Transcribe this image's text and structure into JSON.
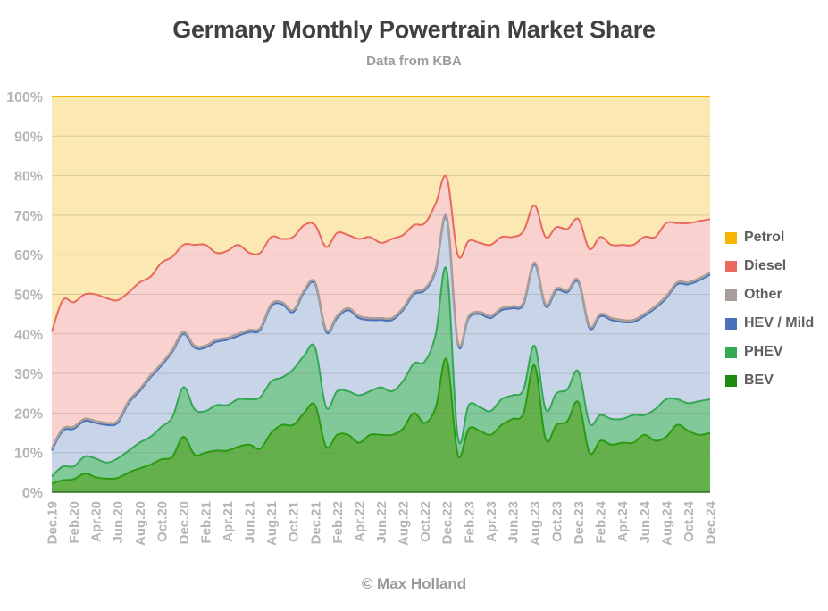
{
  "chart_data": {
    "type": "area",
    "stacked": true,
    "title": "Germany Monthly Powertrain Market Share",
    "subtitle": "Data from KBA",
    "credit": "© Max Holland",
    "xlabel": "",
    "ylabel": "",
    "ylim": [
      0,
      100
    ],
    "y_ticks": [
      "0%",
      "10%",
      "20%",
      "30%",
      "40%",
      "50%",
      "60%",
      "70%",
      "80%",
      "90%",
      "100%"
    ],
    "x_tick_labels": [
      "Dec.19",
      "Feb.20",
      "Apr.20",
      "Jun.20",
      "Aug.20",
      "Oct.20",
      "Dec.20",
      "Feb.21",
      "Apr.21",
      "Jun.21",
      "Aug.21",
      "Oct.21",
      "Dec.21",
      "Feb.22",
      "Apr.22",
      "Jun.22",
      "Aug.22",
      "Oct.22",
      "Dec.22",
      "Feb.23",
      "Apr.23",
      "Jun.23",
      "Aug.23",
      "Oct.23",
      "Dec.23",
      "Feb.24",
      "Apr.24",
      "Jun.24",
      "Aug.24",
      "Oct.24",
      "Dec.24"
    ],
    "months_count": 61,
    "grid": true,
    "legend_position": "right",
    "series": [
      {
        "name": "BEV",
        "color": "#2a9a12",
        "fill": "#64b04b",
        "values": [
          2.2,
          3,
          3.3,
          4.7,
          3.8,
          3.4,
          3.6,
          5,
          6,
          7,
          8.3,
          9,
          14,
          9.5,
          10,
          10.5,
          10.5,
          11.5,
          12,
          11,
          15,
          17,
          17,
          20,
          22,
          11.5,
          14.5,
          14.5,
          12.5,
          14.5,
          14.5,
          14.5,
          16,
          20,
          17.5,
          21.5,
          33.5,
          9.5,
          16,
          15.5,
          14.5,
          17,
          18.5,
          20,
          32,
          13.5,
          17,
          18,
          22.7,
          10,
          13,
          12,
          12.5,
          12.5,
          14.5,
          13,
          14,
          17,
          15.5,
          14.5,
          15
        ]
      },
      {
        "name": "PHEV",
        "color": "#34a853",
        "fill": "#82c99a",
        "values": [
          1.8,
          3.5,
          3.2,
          4.3,
          4.7,
          4.1,
          4.9,
          5.5,
          6.5,
          7,
          8.2,
          10,
          12.5,
          11.5,
          10.5,
          11.5,
          11.5,
          12,
          11.5,
          13,
          13,
          12,
          14,
          14.5,
          14.5,
          10,
          11,
          11,
          12,
          11,
          12,
          11,
          12,
          12.5,
          15.5,
          18.5,
          22.5,
          4.5,
          6,
          6,
          6,
          6.5,
          6,
          6,
          5,
          7.5,
          8,
          8,
          7.8,
          7.5,
          6.5,
          6.5,
          6,
          7,
          5,
          8,
          9.5,
          6.5,
          7,
          8.5,
          8.5
        ]
      },
      {
        "name": "HEV / Mild",
        "color": "#4a72b8",
        "fill": "#c8d4e8",
        "values": [
          6.5,
          9,
          9.5,
          9,
          9,
          9.5,
          9,
          12,
          13,
          15,
          15.5,
          16.5,
          13.5,
          15.5,
          16,
          16,
          16.5,
          16,
          17,
          17,
          19,
          18.5,
          14.5,
          16,
          16,
          19,
          18.5,
          20.5,
          19.5,
          18,
          17,
          18,
          18,
          17.5,
          18,
          16,
          13,
          23.5,
          22,
          23.5,
          23.5,
          22.5,
          22,
          21.5,
          20.5,
          26,
          26,
          24.5,
          22.5,
          24,
          25,
          25,
          24.5,
          23.5,
          25,
          25.5,
          25.5,
          29,
          30,
          30.5,
          31.5
        ]
      },
      {
        "name": "Other",
        "color": "#a89e99",
        "fill": "#d9cfca",
        "values": [
          0.5,
          0.5,
          0.5,
          0.5,
          0.5,
          0.5,
          0.5,
          0.5,
          0.5,
          0.5,
          0.5,
          0.5,
          0.5,
          0.5,
          0.5,
          0.5,
          0.5,
          0.5,
          0.5,
          0.5,
          0.5,
          0.5,
          0.5,
          0.5,
          0.5,
          0.5,
          0.5,
          0.5,
          0.5,
          0.5,
          0.5,
          0.5,
          0.5,
          0.5,
          0.5,
          0.5,
          0.5,
          0.5,
          0.5,
          0.5,
          0.5,
          0.5,
          0.5,
          0.5,
          0.5,
          0.5,
          0.5,
          0.5,
          0.5,
          0.5,
          0.5,
          0.5,
          0.5,
          0.5,
          0.5,
          0.5,
          0.5,
          0.5,
          0.5,
          0.5,
          0.5
        ]
      },
      {
        "name": "Diesel",
        "color": "#e8695e",
        "fill": "#f9d2cf",
        "values": [
          29.5,
          32.5,
          31.5,
          31.5,
          32,
          31.5,
          30.5,
          27.5,
          27,
          25,
          25.5,
          23.5,
          22,
          25.5,
          25.5,
          22,
          22,
          22.5,
          19.5,
          19,
          17,
          16,
          18.5,
          16.5,
          14.5,
          21,
          21,
          18.5,
          19.5,
          20.5,
          19,
          20,
          18.5,
          17,
          16.5,
          16.5,
          10,
          22,
          19,
          17.5,
          18,
          18,
          17.5,
          18,
          14.5,
          17,
          15.5,
          15.5,
          15.5,
          19.5,
          19.5,
          18.5,
          19,
          19,
          19.5,
          17.5,
          18.5,
          15,
          15,
          14.5,
          13.5
        ]
      },
      {
        "name": "Petrol",
        "color": "#f4b400",
        "fill": "#fce8b2",
        "values": [
          59.5,
          51.5,
          52,
          50,
          50,
          51,
          51.5,
          49.5,
          47,
          45.5,
          42,
          40.5,
          37.5,
          37.5,
          37.5,
          39.5,
          39,
          37.5,
          39.5,
          39.5,
          35.5,
          36,
          35.5,
          32.5,
          32.5,
          38,
          34.5,
          35,
          36,
          35.5,
          37,
          36,
          35,
          32.5,
          32,
          27,
          20.5,
          40,
          36.5,
          37,
          37.5,
          35.5,
          35.5,
          34,
          27.5,
          35.5,
          33,
          33.5,
          31,
          38.5,
          35.5,
          37.5,
          37.5,
          37.5,
          35.5,
          35.5,
          32,
          32,
          32,
          31.5,
          31
        ]
      }
    ]
  },
  "legend": {
    "items": [
      {
        "label": "Petrol",
        "color": "#f4b400"
      },
      {
        "label": "Diesel",
        "color": "#e8695e"
      },
      {
        "label": "Other",
        "color": "#a89e99"
      },
      {
        "label": "HEV / Mild",
        "color": "#4a72b8"
      },
      {
        "label": "PHEV",
        "color": "#34a853"
      },
      {
        "label": "BEV",
        "color": "#1e8c0f"
      }
    ]
  }
}
